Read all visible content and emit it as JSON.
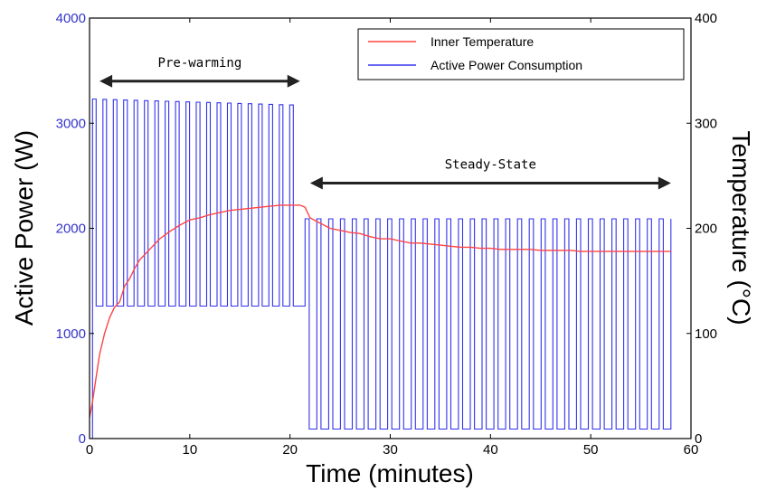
{
  "chart_data": {
    "type": "line",
    "xlabel": "Time (minutes)",
    "ylabel_left": "Active Power (W)",
    "ylabel_right": "Temperature (°C)",
    "xlim": [
      0,
      60
    ],
    "ylim_left": [
      0,
      4000
    ],
    "ylim_right": [
      0,
      400
    ],
    "x_ticks": [
      0,
      10,
      20,
      30,
      40,
      50,
      60
    ],
    "y_left_ticks": [
      0,
      1000,
      2000,
      3000,
      4000
    ],
    "y_right_ticks": [
      0,
      100,
      200,
      300,
      400
    ],
    "grid": false,
    "legend_position": "top-right",
    "colors": {
      "temperature": "#ff4444",
      "power": "#3333ee",
      "left_axis": "#3333cc",
      "arrow": "#222222"
    },
    "annotations": [
      {
        "text": "Pre-warming",
        "x_start": 1,
        "x_end": 21,
        "y_left": 3400
      },
      {
        "text": "Steady-State",
        "x_start": 22,
        "x_end": 58,
        "y_left": 2430
      }
    ],
    "series": [
      {
        "name": "Inner Temperature",
        "axis": "right",
        "x": [
          0,
          0.3,
          0.6,
          1,
          1.5,
          2,
          2.5,
          3,
          3.5,
          4,
          4.5,
          5,
          5.5,
          6,
          7,
          8,
          9,
          10,
          11,
          12,
          13,
          14,
          15,
          16,
          17,
          18,
          19,
          20,
          21,
          21.5,
          22,
          23,
          24,
          25,
          26,
          27,
          28,
          29,
          30,
          31,
          32,
          33,
          34,
          35,
          36,
          37,
          38,
          39,
          40,
          41,
          42,
          43,
          44,
          45,
          46,
          47,
          48,
          49,
          50,
          51,
          52,
          53,
          54,
          55,
          56,
          57,
          58
        ],
        "values": [
          20,
          35,
          55,
          80,
          100,
          115,
          125,
          130,
          145,
          152,
          162,
          170,
          175,
          180,
          190,
          197,
          203,
          208,
          210,
          213,
          215,
          217,
          218,
          219,
          220,
          221,
          222,
          222,
          222,
          220,
          210,
          205,
          200,
          198,
          196,
          195,
          192,
          190,
          190,
          188,
          186,
          186,
          185,
          184,
          183,
          182,
          182,
          181,
          181,
          180,
          180,
          180,
          180,
          179,
          179,
          179,
          179,
          178,
          178,
          178,
          178,
          178,
          178,
          178,
          178,
          178,
          178
        ]
      },
      {
        "name": "Active Power Consumption",
        "axis": "left",
        "pulse_segments": [
          {
            "x_start": 0.3,
            "x_end": 21,
            "count": 20,
            "high": 3230,
            "low": 1260
          },
          {
            "x_start": 21.5,
            "x_end": 58,
            "count": 31,
            "high": 2090,
            "low": 90,
            "mid": 1260
          }
        ]
      }
    ]
  }
}
